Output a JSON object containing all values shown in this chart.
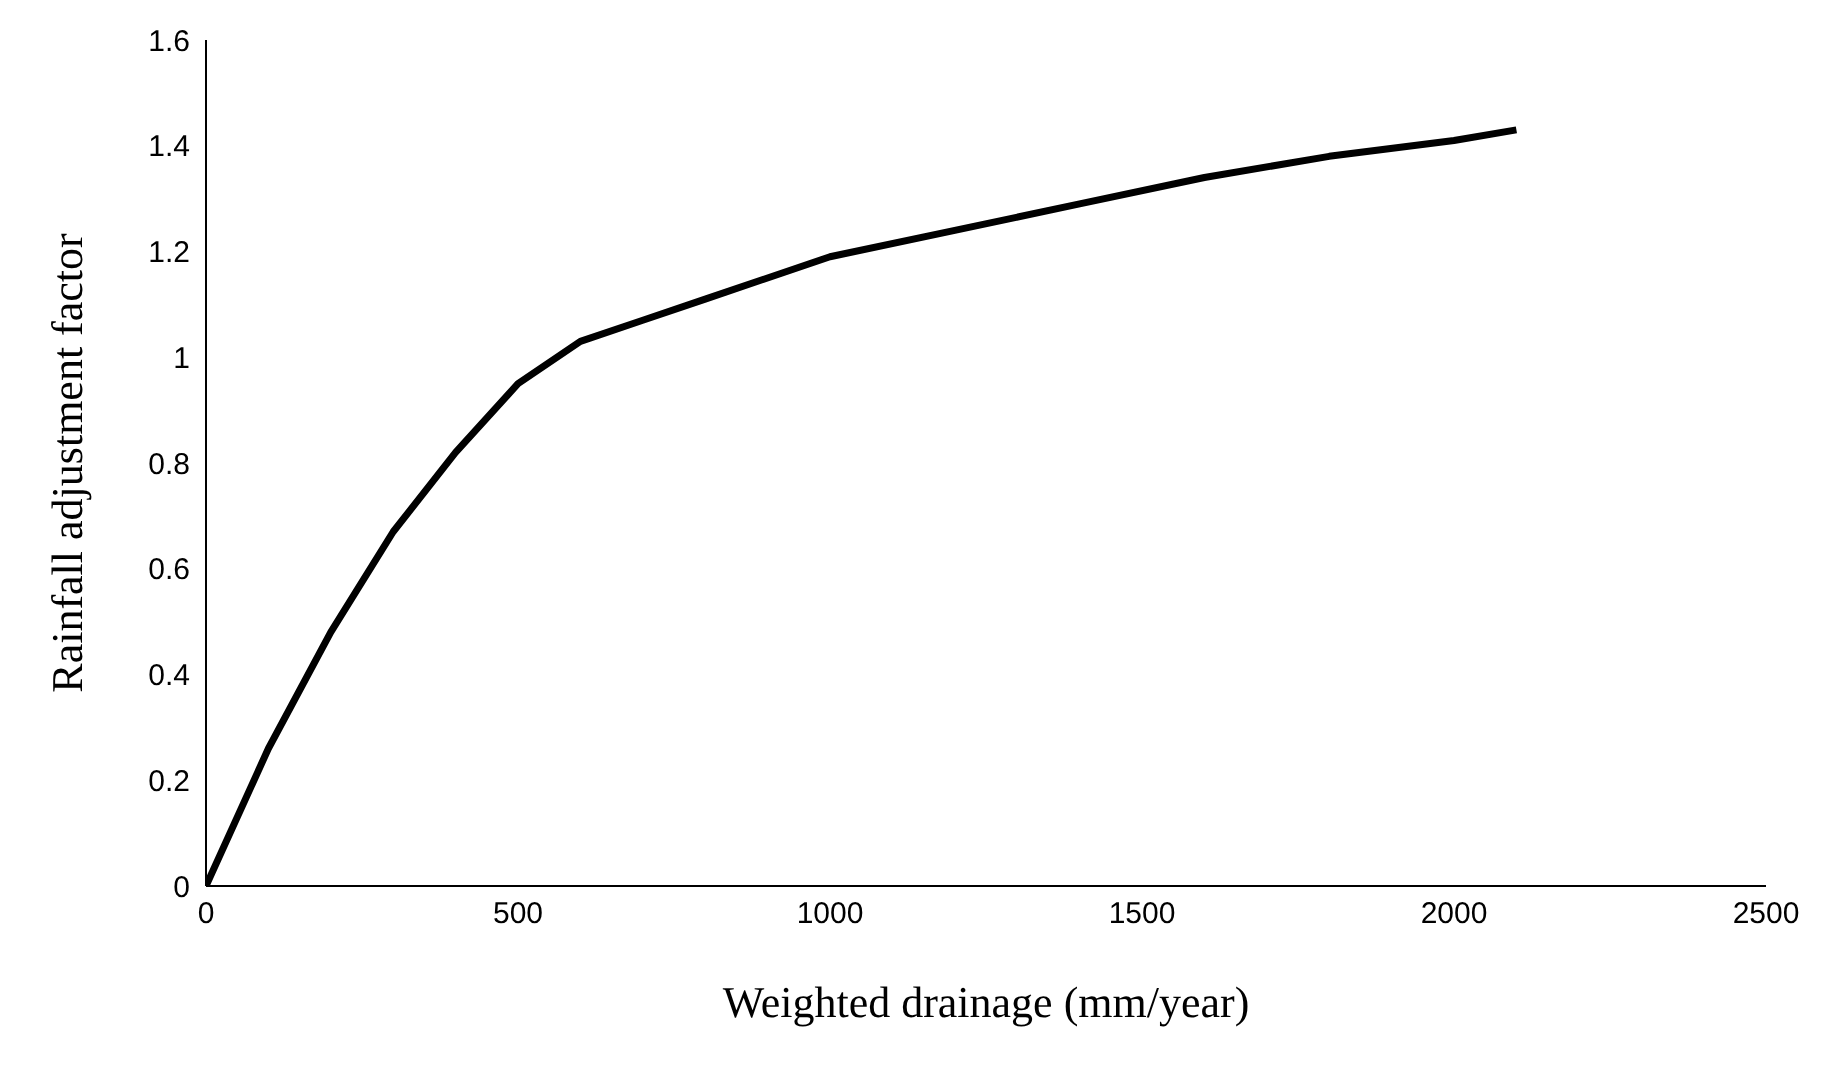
{
  "chart_data": {
    "type": "line",
    "xlabel": "Weighted drainage (mm/year)",
    "ylabel": "Rainfall adjustment factor",
    "x": [
      0,
      100,
      200,
      300,
      400,
      500,
      600,
      700,
      800,
      1000,
      1200,
      1400,
      1600,
      1800,
      2000,
      2100
    ],
    "series": [
      {
        "color": "#000000",
        "values": [
          0,
          0.26,
          0.48,
          0.67,
          0.82,
          0.95,
          1.03,
          1.07,
          1.11,
          1.19,
          1.24,
          1.29,
          1.34,
          1.38,
          1.41,
          1.43
        ]
      }
    ],
    "xlim": [
      0,
      2500
    ],
    "xticks": [
      0,
      500,
      1000,
      1500,
      2000,
      2500
    ],
    "ylim": [
      0,
      1.6
    ],
    "yticks": [
      0,
      0.2,
      0.4,
      0.6,
      0.8,
      1,
      1.2,
      1.4,
      1.6
    ],
    "grid": false,
    "legend": false,
    "marker": "none",
    "line_style": "solid"
  }
}
